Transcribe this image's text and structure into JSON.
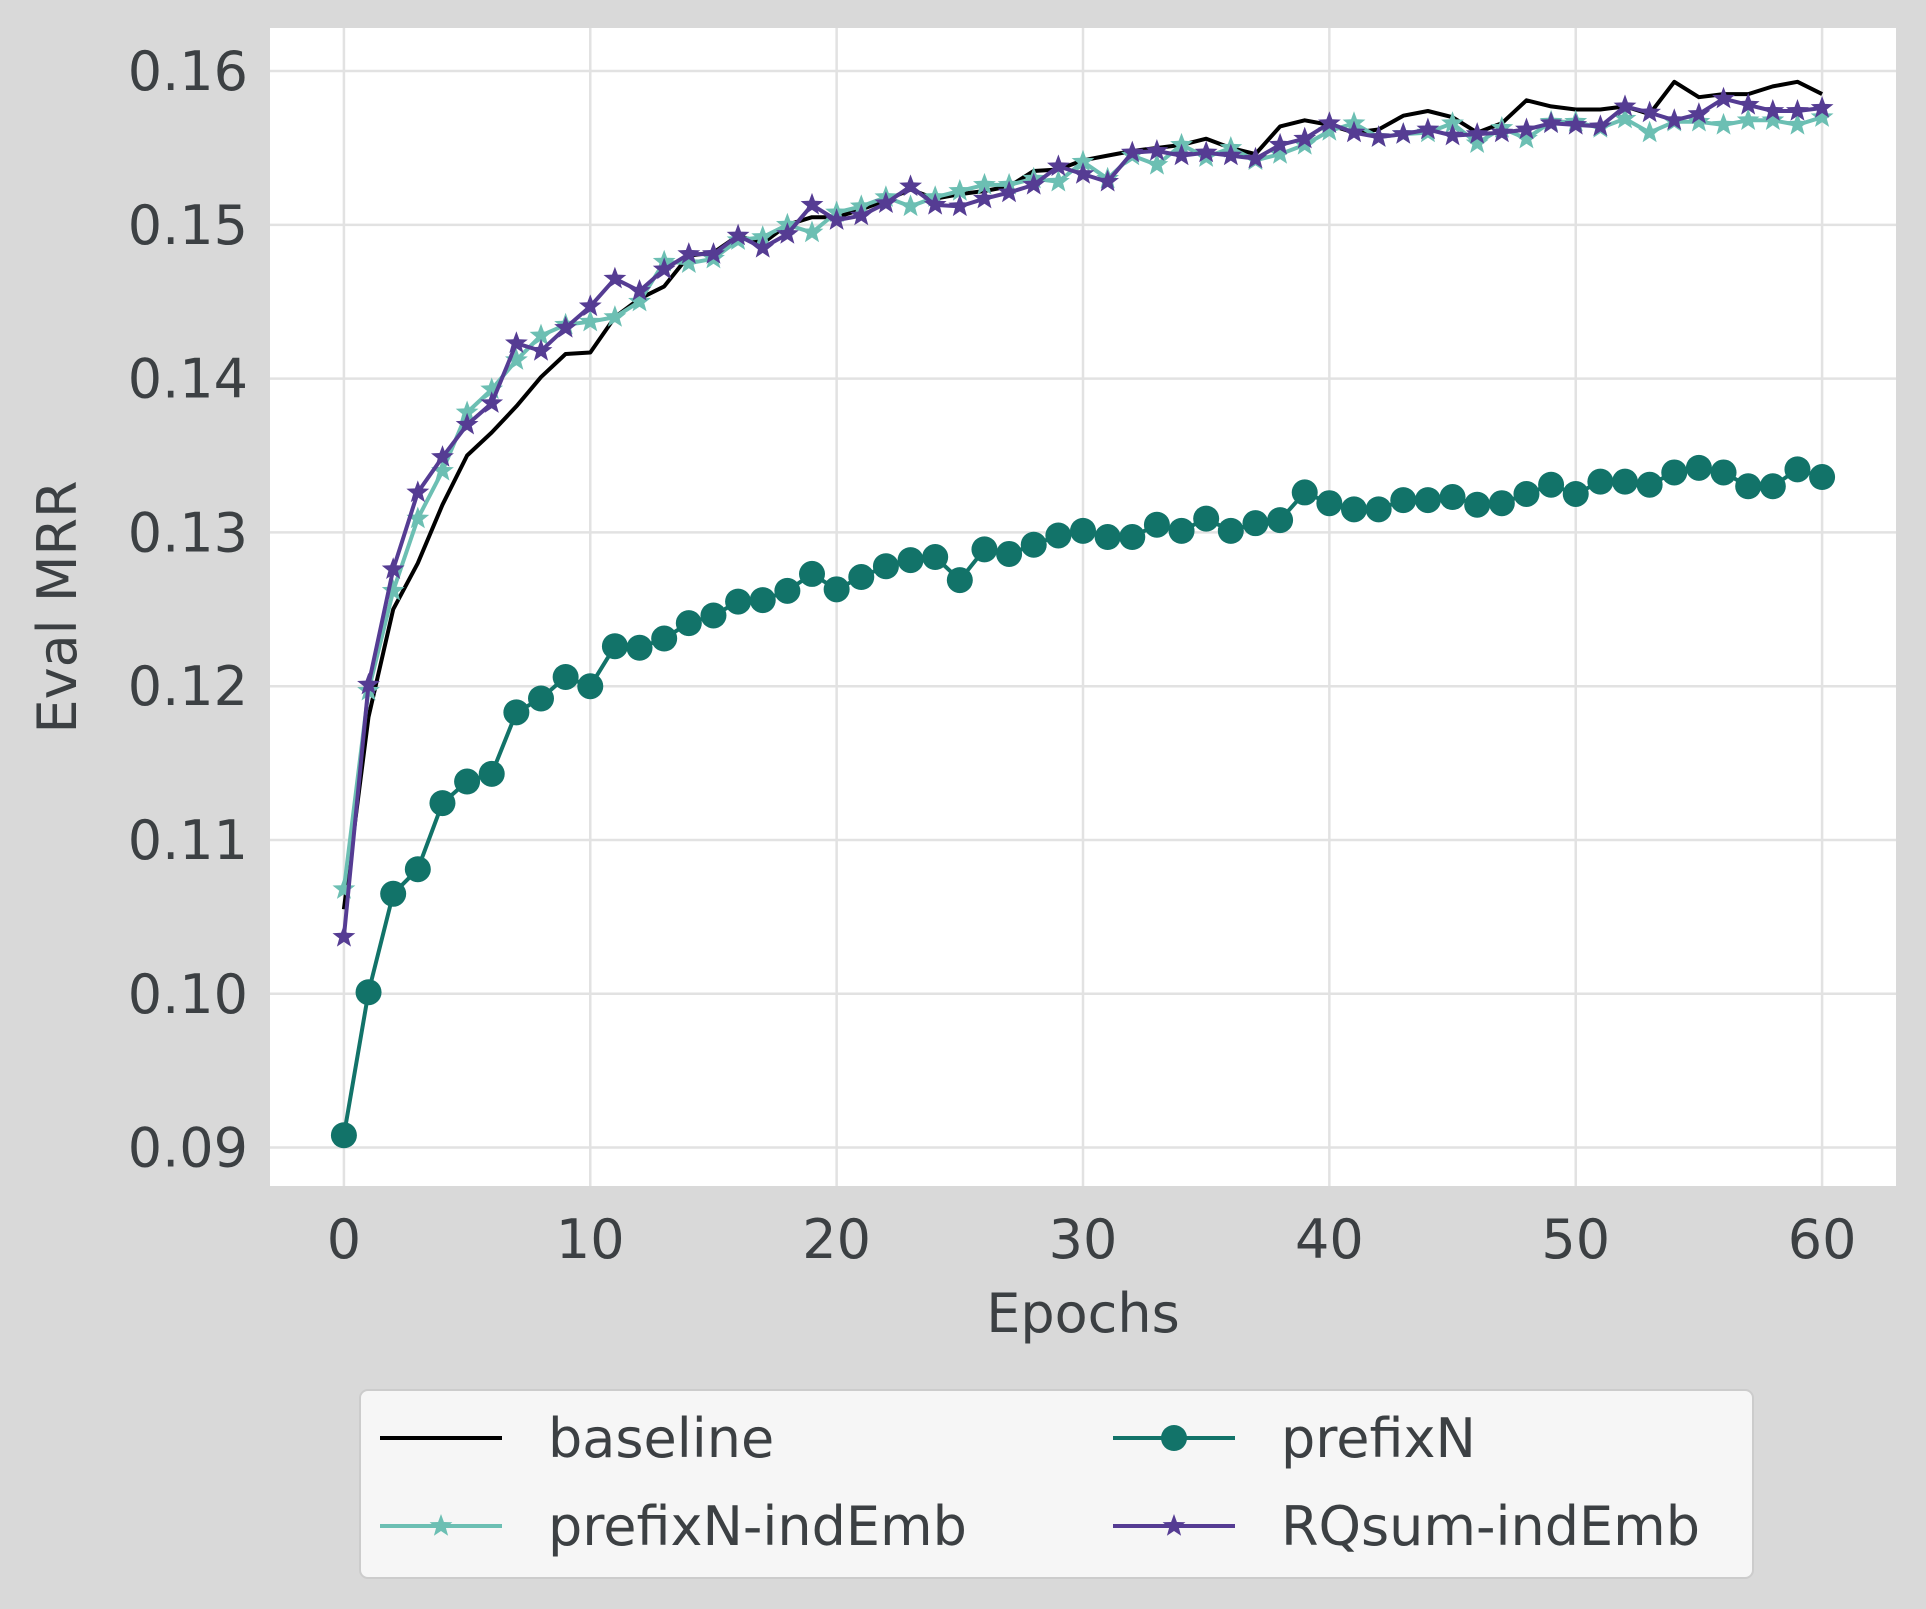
{
  "chart_data": {
    "type": "line",
    "title": "",
    "xlabel": "Epochs",
    "ylabel": "Eval MRR",
    "xlim": [
      -3,
      63
    ],
    "ylim": [
      0.0875,
      0.1628
    ],
    "x_ticks": [
      0,
      10,
      20,
      30,
      40,
      50,
      60
    ],
    "x_tick_labels": [
      "0",
      "10",
      "20",
      "30",
      "40",
      "50",
      "60"
    ],
    "y_ticks": [
      0.09,
      0.1,
      0.11,
      0.12,
      0.13,
      0.14,
      0.15,
      0.16
    ],
    "y_tick_labels": [
      "0.09",
      "0.10",
      "0.11",
      "0.12",
      "0.13",
      "0.14",
      "0.15",
      "0.16"
    ],
    "grid": true,
    "legend_position": "below plot, two columns",
    "x": [
      0,
      1,
      2,
      3,
      4,
      5,
      6,
      7,
      8,
      9,
      10,
      11,
      12,
      13,
      14,
      15,
      16,
      17,
      18,
      19,
      20,
      21,
      22,
      23,
      24,
      25,
      26,
      27,
      28,
      29,
      30,
      31,
      32,
      33,
      34,
      35,
      36,
      37,
      38,
      39,
      40,
      41,
      42,
      43,
      44,
      45,
      46,
      47,
      48,
      49,
      50,
      51,
      52,
      53,
      54,
      55,
      56,
      57,
      58,
      59,
      60
    ],
    "series": [
      {
        "name": "baseline",
        "color": "#000000",
        "marker": "none",
        "values": [
          0.1055,
          0.118,
          0.125,
          0.128,
          0.1318,
          0.135,
          0.1365,
          0.1382,
          0.1401,
          0.1416,
          0.1417,
          0.144,
          0.1452,
          0.146,
          0.148,
          0.1482,
          0.1493,
          0.1488,
          0.15,
          0.1505,
          0.1505,
          0.151,
          0.1516,
          0.1523,
          0.1517,
          0.152,
          0.1522,
          0.1525,
          0.1535,
          0.1536,
          0.1542,
          0.1545,
          0.1548,
          0.155,
          0.1552,
          0.1556,
          0.155,
          0.1546,
          0.1564,
          0.1568,
          0.1565,
          0.156,
          0.1562,
          0.1571,
          0.1574,
          0.157,
          0.156,
          0.1566,
          0.1581,
          0.1577,
          0.1575,
          0.1575,
          0.1577,
          0.1572,
          0.1593,
          0.1583,
          0.1585,
          0.1585,
          0.159,
          0.1593,
          0.1585
        ]
      },
      {
        "name": "prefixN",
        "color": "#127369",
        "marker": "circle",
        "values": [
          0.0908,
          0.1001,
          0.1065,
          0.1081,
          0.1124,
          0.1138,
          0.1143,
          0.1183,
          0.1192,
          0.1206,
          0.12,
          0.1226,
          0.1225,
          0.1231,
          0.1241,
          0.1246,
          0.1255,
          0.1256,
          0.1262,
          0.1273,
          0.1263,
          0.1271,
          0.1278,
          0.1282,
          0.1284,
          0.1269,
          0.1289,
          0.1286,
          0.1292,
          0.1298,
          0.1301,
          0.1297,
          0.1297,
          0.1305,
          0.1301,
          0.1309,
          0.1301,
          0.1306,
          0.1308,
          0.1326,
          0.1319,
          0.1315,
          0.1315,
          0.1321,
          0.1321,
          0.1323,
          0.1318,
          0.1319,
          0.1325,
          0.1331,
          0.1325,
          0.1333,
          0.1333,
          0.1331,
          0.1339,
          0.1342,
          0.1339,
          0.133,
          0.133,
          0.1341,
          0.1336
        ]
      },
      {
        "name": "prefixN-indEmb",
        "color": "#6cbfb3",
        "marker": "star",
        "values": [
          0.1068,
          0.1197,
          0.1262,
          0.1309,
          0.134,
          0.1378,
          0.1393,
          0.1412,
          0.1428,
          0.1435,
          0.1437,
          0.144,
          0.145,
          0.1476,
          0.1475,
          0.1478,
          0.149,
          0.1492,
          0.15,
          0.1495,
          0.1508,
          0.1512,
          0.1518,
          0.1512,
          0.1518,
          0.1522,
          0.1526,
          0.1526,
          0.153,
          0.1528,
          0.1541,
          0.153,
          0.1545,
          0.1539,
          0.1552,
          0.1544,
          0.155,
          0.1542,
          0.1546,
          0.1552,
          0.1561,
          0.1566,
          0.1557,
          0.1559,
          0.156,
          0.1566,
          0.1553,
          0.1563,
          0.1556,
          0.1567,
          0.1567,
          0.1563,
          0.1569,
          0.156,
          0.1567,
          0.1567,
          0.1565,
          0.1568,
          0.1568,
          0.1565,
          0.157
        ]
      },
      {
        "name": "RQsum-indEmb",
        "color": "#553c93",
        "marker": "star",
        "values": [
          0.1037,
          0.1201,
          0.1276,
          0.1326,
          0.1349,
          0.137,
          0.1384,
          0.1423,
          0.1418,
          0.1433,
          0.1447,
          0.1465,
          0.1457,
          0.1471,
          0.1481,
          0.1481,
          0.1493,
          0.1485,
          0.1494,
          0.1513,
          0.1503,
          0.1506,
          0.1514,
          0.1525,
          0.1513,
          0.1512,
          0.1517,
          0.1521,
          0.1526,
          0.1538,
          0.1533,
          0.1528,
          0.1547,
          0.1548,
          0.1545,
          0.1547,
          0.1545,
          0.1543,
          0.1552,
          0.1556,
          0.1566,
          0.156,
          0.1557,
          0.1559,
          0.1562,
          0.1558,
          0.1559,
          0.156,
          0.1562,
          0.1566,
          0.1565,
          0.1564,
          0.1577,
          0.1573,
          0.1568,
          0.1572,
          0.1582,
          0.1578,
          0.1574,
          0.1574,
          0.1576
        ]
      }
    ]
  }
}
